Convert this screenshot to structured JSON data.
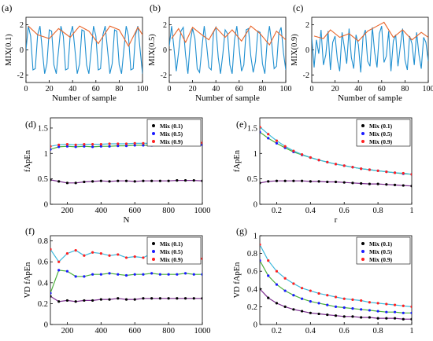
{
  "figure": {
    "panels": [
      {
        "id": "a",
        "label": "(a)",
        "ylabel": "MIX(0.1)",
        "xlabel": "Number of sample",
        "xticks": [
          "0",
          "20",
          "40",
          "60",
          "80",
          "100"
        ],
        "yticks": [
          "-2",
          "0",
          "2"
        ]
      },
      {
        "id": "b",
        "label": "(b)",
        "ylabel": "MIX(0.5)",
        "xlabel": "Number of sample",
        "xticks": [
          "0",
          "20",
          "40",
          "60",
          "80",
          "100"
        ],
        "yticks": [
          "-2",
          "0",
          "2"
        ]
      },
      {
        "id": "c",
        "label": "(c)",
        "ylabel": "MIX(0.9)",
        "xlabel": "Number of sample",
        "xticks": [
          "0",
          "20",
          "40",
          "60",
          "80",
          "100"
        ],
        "yticks": [
          "-2",
          "0",
          "2"
        ]
      },
      {
        "id": "d",
        "label": "(d)",
        "ylabel": "fApEn",
        "xlabel": "N",
        "xticks": [
          "200",
          "400",
          "600",
          "800",
          "1000"
        ],
        "yticks": [
          "0",
          "0.5",
          "1",
          "1.5"
        ],
        "legend": [
          "Mix (0.1)",
          "Mix (0.5)",
          "Mix (0.9)"
        ]
      },
      {
        "id": "e",
        "label": "(e)",
        "ylabel": "fApEn",
        "xlabel": "r",
        "xticks": [
          "0.2",
          "0.4",
          "0.6",
          "0.8",
          "1"
        ],
        "yticks": [
          "0",
          "0.5",
          "1",
          "1.5"
        ],
        "legend": [
          "Mix (0.1)",
          "Mix (0.5)",
          "Mix (0.9)"
        ]
      },
      {
        "id": "f",
        "label": "(f)",
        "ylabel": "VD fApEn",
        "xlabel": "",
        "xticks": [
          "200",
          "400",
          "600",
          "800",
          "1000"
        ],
        "yticks": [
          "0",
          "0.2",
          "0.4",
          "0.6",
          "0.8"
        ],
        "legend": [
          "Mix (0.1)",
          "Mix (0.5)",
          "Mix (0.9)"
        ]
      },
      {
        "id": "g",
        "label": "(g)",
        "ylabel": "VD fApEn",
        "xlabel": "",
        "xticks": [
          "0.2",
          "0.4",
          "0.6",
          "0.8",
          "1"
        ],
        "yticks": [
          "0",
          "0.2",
          "0.4",
          "0.6",
          "0.8",
          "1"
        ],
        "legend": [
          "Mix (0.1)",
          "Mix (0.5)",
          "Mix (0.9)"
        ]
      }
    ],
    "colors": {
      "signal": "#1f8fd0",
      "envelope": "#e8652a",
      "mix01": "#7b2d8e",
      "mix05": "#4caf3c",
      "mix09": "#3cb8dc",
      "marker01": "#000000",
      "marker05": "#1a1aff",
      "marker09": "#ff2020"
    }
  },
  "chart_data": [
    {
      "panel": "a",
      "type": "line",
      "xlim": [
        0,
        100
      ],
      "ylim": [
        -2.6,
        2.6
      ],
      "series": [
        {
          "name": "",
          "color": "signal",
          "x": [
            0,
            2,
            4,
            6,
            8,
            10,
            12,
            14,
            16,
            18,
            20,
            22,
            24,
            26,
            28,
            30,
            32,
            34,
            36,
            38,
            40,
            42,
            44,
            46,
            48,
            50,
            52,
            54,
            56,
            58,
            60,
            62,
            64,
            66,
            68,
            70,
            72,
            74,
            76,
            78,
            80,
            82,
            84,
            86,
            88,
            90,
            92,
            94,
            96,
            98,
            100
          ],
          "y": [
            0,
            1.9,
            1.1,
            -1.6,
            -1.5,
            1.2,
            1.9,
            0,
            -1.9,
            -1.1,
            1.6,
            1.5,
            -1.2,
            -1.9,
            0,
            1.9,
            1.1,
            -1.6,
            -1.5,
            1.2,
            1.9,
            0,
            -1.9,
            -1.1,
            1.6,
            1.5,
            -1.2,
            -1.9,
            0,
            1.9,
            1.1,
            -1.6,
            -1.5,
            1.2,
            1.9,
            0,
            -1.9,
            -1.1,
            1.6,
            1.5,
            -1.2,
            -1.9,
            0,
            1.9,
            1.1,
            -1.6,
            -1.5,
            1.2,
            1.9,
            0,
            -1.9
          ]
        },
        {
          "name": "",
          "color": "envelope",
          "x": [
            2,
            10,
            20,
            28,
            38,
            46,
            54,
            62,
            72,
            80,
            88,
            96,
            100
          ],
          "y": [
            1.9,
            1.2,
            0.9,
            1.7,
            1.0,
            1.9,
            1.5,
            0.5,
            1.9,
            1.6,
            0.3,
            1.8,
            1.2
          ]
        }
      ]
    },
    {
      "panel": "b",
      "type": "line",
      "xlim": [
        0,
        100
      ],
      "ylim": [
        -2.6,
        2.6
      ],
      "series": [
        {
          "name": "",
          "color": "signal",
          "x": [
            0,
            2,
            4,
            6,
            8,
            10,
            12,
            14,
            16,
            18,
            20,
            22,
            24,
            26,
            28,
            30,
            32,
            34,
            36,
            38,
            40,
            42,
            44,
            46,
            48,
            50,
            52,
            54,
            56,
            58,
            60,
            62,
            64,
            66,
            68,
            70,
            72,
            74,
            76,
            78,
            80,
            82,
            84,
            86,
            88,
            90,
            92,
            94,
            96,
            98,
            100
          ],
          "y": [
            0.3,
            1.9,
            0.2,
            -1.7,
            -0.2,
            1.5,
            1.8,
            -0.4,
            -1.9,
            0.6,
            1.7,
            0.9,
            -1.5,
            -1.8,
            0.1,
            1.9,
            0.4,
            -1.4,
            -1.6,
            1.4,
            1.8,
            -0.6,
            -1.9,
            -0.3,
            1.6,
            1.3,
            -1.2,
            -1.9,
            0.8,
            1.9,
            0.1,
            -1.7,
            -1.2,
            1.6,
            1.7,
            -0.5,
            -1.8,
            -0.9,
            1.5,
            1.4,
            -1.1,
            -1.9,
            0.6,
            1.9,
            0.5,
            -1.5,
            -1.3,
            1.3,
            1.8,
            -0.2,
            -1.6
          ]
        },
        {
          "name": "",
          "color": "envelope",
          "x": [
            2,
            8,
            14,
            20,
            28,
            34,
            40,
            48,
            54,
            62,
            70,
            78,
            86,
            92,
            100
          ],
          "y": [
            0.9,
            1.7,
            0.6,
            1.8,
            1.2,
            0.8,
            1.8,
            1.0,
            1.6,
            0.7,
            1.9,
            1.3,
            0.4,
            1.5,
            0.8
          ]
        }
      ]
    },
    {
      "panel": "c",
      "type": "line",
      "xlim": [
        0,
        100
      ],
      "ylim": [
        -2.6,
        2.6
      ],
      "series": [
        {
          "name": "",
          "color": "signal",
          "x": [
            0,
            2,
            4,
            6,
            8,
            10,
            12,
            14,
            16,
            18,
            20,
            22,
            24,
            26,
            28,
            30,
            32,
            34,
            36,
            38,
            40,
            42,
            44,
            46,
            48,
            50,
            52,
            54,
            56,
            58,
            60,
            62,
            64,
            66,
            68,
            70,
            72,
            74,
            76,
            78,
            80,
            82,
            84,
            86,
            88,
            90,
            92,
            94,
            96,
            98,
            100
          ],
          "y": [
            1.0,
            -1.4,
            0.8,
            -0.3,
            1.6,
            -1.2,
            -0.4,
            1.5,
            -1.6,
            0.6,
            1.1,
            -0.8,
            -1.7,
            1.4,
            0.2,
            -1.1,
            1.7,
            -0.6,
            -1.5,
            1.2,
            0.4,
            -1.8,
            1.0,
            1.6,
            -0.9,
            -1.3,
            1.8,
            -0.2,
            -1.4,
            1.3,
            1.9,
            -1.0,
            -0.5,
            1.5,
            -1.7,
            0.7,
            1.2,
            -1.3,
            0.3,
            1.7,
            -0.8,
            -1.6,
            1.1,
            0.5,
            -1.2,
            1.4,
            -0.4,
            -1.5,
            1.0,
            0.6,
            -0.9
          ]
        },
        {
          "name": "",
          "color": "envelope",
          "x": [
            2,
            10,
            16,
            24,
            32,
            40,
            48,
            56,
            62,
            70,
            78,
            86,
            94,
            100
          ],
          "y": [
            1.1,
            0.9,
            1.6,
            1.0,
            1.3,
            0.7,
            1.5,
            1.9,
            2.2,
            1.0,
            1.6,
            0.8,
            1.4,
            1.0
          ]
        }
      ]
    },
    {
      "panel": "d",
      "type": "line",
      "xlim": [
        100,
        1000
      ],
      "ylim": [
        0,
        1.7
      ],
      "xlabel": "N",
      "ylabel": "fApEn",
      "x": [
        100,
        150,
        200,
        250,
        300,
        350,
        400,
        450,
        500,
        550,
        600,
        650,
        700,
        750,
        800,
        850,
        900,
        950,
        1000
      ],
      "series": [
        {
          "name": "Mix (0.1)",
          "color": "mix01",
          "marker": "marker01",
          "values": [
            0.48,
            0.45,
            0.42,
            0.42,
            0.44,
            0.45,
            0.46,
            0.45,
            0.46,
            0.46,
            0.45,
            0.46,
            0.46,
            0.46,
            0.46,
            0.47,
            0.47,
            0.47,
            0.46
          ]
        },
        {
          "name": "Mix (0.5)",
          "color": "mix05",
          "marker": "marker05",
          "values": [
            1.08,
            1.13,
            1.14,
            1.13,
            1.14,
            1.13,
            1.14,
            1.14,
            1.15,
            1.15,
            1.16,
            1.16,
            1.16,
            1.17,
            1.17,
            1.17,
            1.17,
            1.17,
            1.17
          ]
        },
        {
          "name": "Mix (0.9)",
          "color": "mix09",
          "marker": "marker09",
          "values": [
            1.14,
            1.17,
            1.18,
            1.17,
            1.18,
            1.18,
            1.18,
            1.19,
            1.19,
            1.19,
            1.2,
            1.2,
            1.2,
            1.21,
            1.21,
            1.21,
            1.21,
            1.21,
            1.21
          ]
        }
      ]
    },
    {
      "panel": "e",
      "type": "line",
      "xlim": [
        0.1,
        1.0
      ],
      "ylim": [
        0,
        1.7
      ],
      "xlabel": "r",
      "ylabel": "fApEn",
      "x": [
        0.1,
        0.15,
        0.2,
        0.25,
        0.3,
        0.35,
        0.4,
        0.45,
        0.5,
        0.55,
        0.6,
        0.65,
        0.7,
        0.75,
        0.8,
        0.85,
        0.9,
        0.95,
        1.0
      ],
      "series": [
        {
          "name": "Mix (0.1)",
          "color": "mix01",
          "marker": "marker01",
          "values": [
            0.42,
            0.45,
            0.46,
            0.46,
            0.46,
            0.46,
            0.45,
            0.45,
            0.44,
            0.44,
            0.43,
            0.42,
            0.41,
            0.4,
            0.4,
            0.39,
            0.38,
            0.37,
            0.36
          ]
        },
        {
          "name": "Mix (0.5)",
          "color": "mix05",
          "marker": "marker05",
          "values": [
            1.42,
            1.3,
            1.2,
            1.11,
            1.03,
            0.97,
            0.92,
            0.87,
            0.83,
            0.79,
            0.76,
            0.73,
            0.7,
            0.68,
            0.66,
            0.64,
            0.62,
            0.6,
            0.59
          ]
        },
        {
          "name": "Mix (0.9)",
          "color": "mix09",
          "marker": "marker09",
          "values": [
            1.52,
            1.38,
            1.25,
            1.14,
            1.05,
            0.98,
            0.92,
            0.87,
            0.83,
            0.79,
            0.76,
            0.73,
            0.7,
            0.68,
            0.66,
            0.64,
            0.62,
            0.61,
            0.59
          ]
        }
      ]
    },
    {
      "panel": "f",
      "type": "line",
      "xlim": [
        100,
        1000
      ],
      "ylim": [
        0,
        0.85
      ],
      "xlabel": "",
      "ylabel": "VD fApEn",
      "x": [
        100,
        150,
        200,
        250,
        300,
        350,
        400,
        450,
        500,
        550,
        600,
        650,
        700,
        750,
        800,
        850,
        900,
        950,
        1000
      ],
      "series": [
        {
          "name": "Mix (0.1)",
          "color": "mix01",
          "marker": "marker01",
          "values": [
            0.27,
            0.22,
            0.23,
            0.22,
            0.23,
            0.23,
            0.24,
            0.24,
            0.25,
            0.24,
            0.24,
            0.25,
            0.25,
            0.25,
            0.25,
            0.25,
            0.25,
            0.25,
            0.25
          ]
        },
        {
          "name": "Mix (0.5)",
          "color": "mix05",
          "marker": "marker05",
          "values": [
            0.3,
            0.52,
            0.51,
            0.46,
            0.46,
            0.48,
            0.48,
            0.49,
            0.48,
            0.47,
            0.48,
            0.48,
            0.49,
            0.48,
            0.48,
            0.48,
            0.49,
            0.48,
            0.48
          ]
        },
        {
          "name": "Mix (0.9)",
          "color": "mix09",
          "marker": "marker09",
          "values": [
            0.72,
            0.6,
            0.68,
            0.71,
            0.66,
            0.69,
            0.68,
            0.66,
            0.67,
            0.64,
            0.65,
            0.64,
            0.68,
            0.67,
            0.63,
            0.64,
            0.66,
            0.64,
            0.63
          ]
        }
      ]
    },
    {
      "panel": "g",
      "type": "line",
      "xlim": [
        0.1,
        1.0
      ],
      "ylim": [
        0,
        1.0
      ],
      "xlabel": "",
      "ylabel": "VD fApEn",
      "x": [
        0.1,
        0.15,
        0.2,
        0.25,
        0.3,
        0.35,
        0.4,
        0.45,
        0.5,
        0.55,
        0.6,
        0.65,
        0.7,
        0.75,
        0.8,
        0.85,
        0.9,
        0.95,
        1.0
      ],
      "series": [
        {
          "name": "Mix (0.1)",
          "color": "mix01",
          "marker": "marker01",
          "values": [
            0.4,
            0.3,
            0.24,
            0.2,
            0.17,
            0.15,
            0.13,
            0.12,
            0.11,
            0.1,
            0.09,
            0.09,
            0.08,
            0.08,
            0.07,
            0.07,
            0.07,
            0.06,
            0.06
          ]
        },
        {
          "name": "Mix (0.5)",
          "color": "mix05",
          "marker": "marker05",
          "values": [
            0.72,
            0.55,
            0.45,
            0.38,
            0.33,
            0.29,
            0.26,
            0.24,
            0.22,
            0.2,
            0.19,
            0.18,
            0.17,
            0.16,
            0.15,
            0.14,
            0.14,
            0.13,
            0.13
          ]
        },
        {
          "name": "Mix (0.9)",
          "color": "mix09",
          "marker": "marker09",
          "values": [
            0.9,
            0.72,
            0.6,
            0.52,
            0.46,
            0.41,
            0.38,
            0.35,
            0.33,
            0.31,
            0.29,
            0.28,
            0.27,
            0.25,
            0.24,
            0.23,
            0.22,
            0.21,
            0.2
          ]
        }
      ]
    }
  ]
}
